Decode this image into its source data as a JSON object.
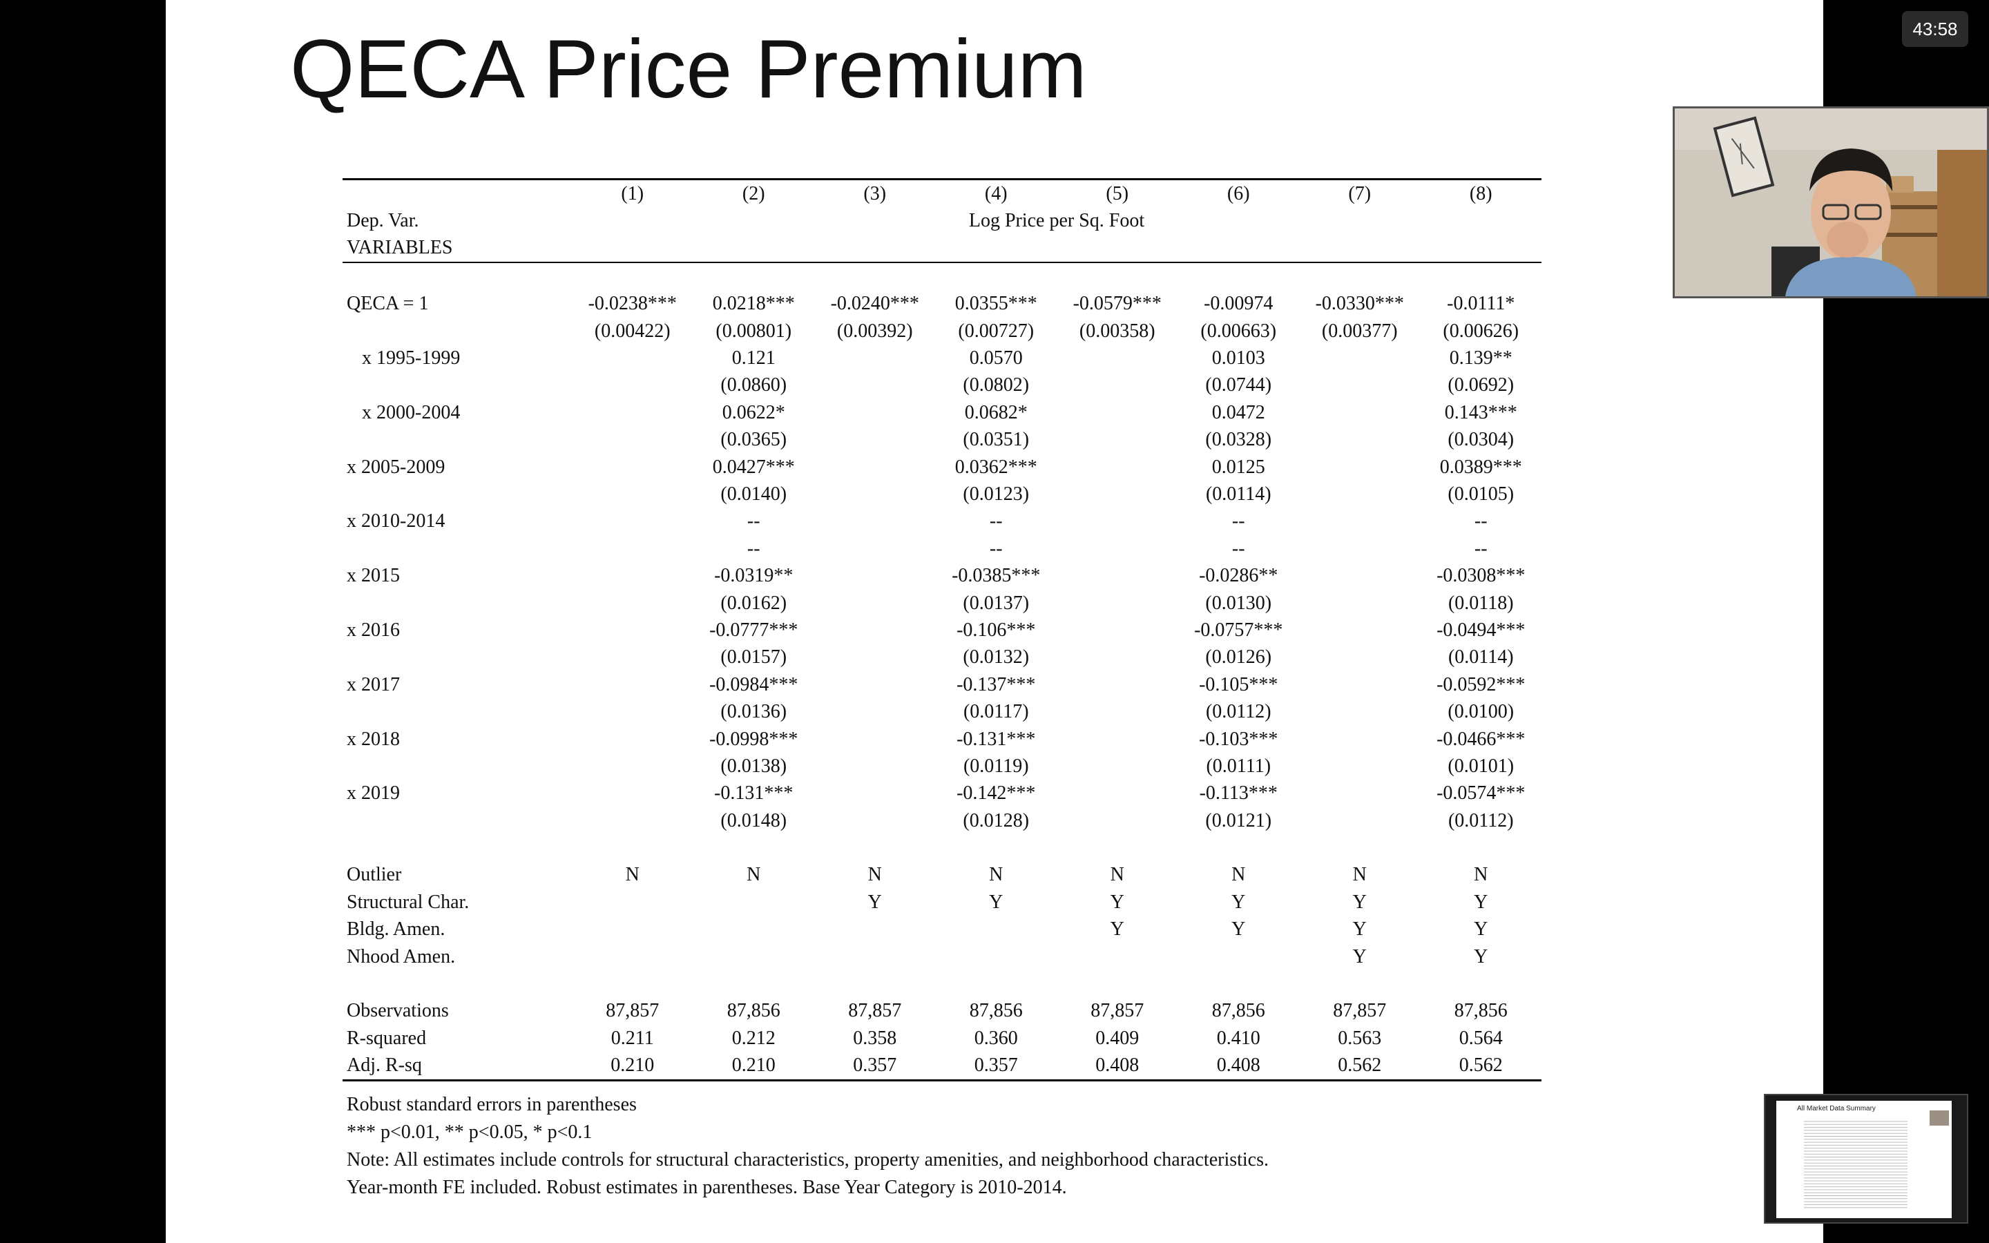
{
  "slide": {
    "title": "QECA Price Premium"
  },
  "timer": {
    "text": "43:58"
  },
  "table": {
    "col_numbers": [
      "(1)",
      "(2)",
      "(3)",
      "(4)",
      "(5)",
      "(6)",
      "(7)",
      "(8)"
    ],
    "dep_var_label": "Dep. Var.",
    "dep_var_value": "Log Price per Sq. Foot",
    "variables_label": "VARIABLES",
    "rows": [
      {
        "label": "QECA = 1",
        "indent": false,
        "values": [
          "-0.0238***",
          "0.0218***",
          "-0.0240***",
          "0.0355***",
          "-0.0579***",
          "-0.00974",
          "-0.0330***",
          "-0.0111*"
        ]
      },
      {
        "label": "",
        "indent": false,
        "values": [
          "(0.00422)",
          "(0.00801)",
          "(0.00392)",
          "(0.00727)",
          "(0.00358)",
          "(0.00663)",
          "(0.00377)",
          "(0.00626)"
        ]
      },
      {
        "label": "x 1995-1999",
        "indent": true,
        "values": [
          "",
          "0.121",
          "",
          "0.0570",
          "",
          "0.0103",
          "",
          "0.139**"
        ]
      },
      {
        "label": "",
        "indent": false,
        "values": [
          "",
          "(0.0860)",
          "",
          "(0.0802)",
          "",
          "(0.0744)",
          "",
          "(0.0692)"
        ]
      },
      {
        "label": "x 2000-2004",
        "indent": true,
        "values": [
          "",
          "0.0622*",
          "",
          "0.0682*",
          "",
          "0.0472",
          "",
          "0.143***"
        ]
      },
      {
        "label": "",
        "indent": false,
        "values": [
          "",
          "(0.0365)",
          "",
          "(0.0351)",
          "",
          "(0.0328)",
          "",
          "(0.0304)"
        ]
      },
      {
        "label": "x 2005-2009",
        "indent": false,
        "values": [
          "",
          "0.0427***",
          "",
          "0.0362***",
          "",
          "0.0125",
          "",
          "0.0389***"
        ]
      },
      {
        "label": "",
        "indent": false,
        "values": [
          "",
          "(0.0140)",
          "",
          "(0.0123)",
          "",
          "(0.0114)",
          "",
          "(0.0105)"
        ]
      },
      {
        "label": "x 2010-2014",
        "indent": false,
        "values": [
          "",
          "--",
          "",
          "--",
          "",
          "--",
          "",
          "--"
        ]
      },
      {
        "label": "",
        "indent": false,
        "values": [
          "",
          "--",
          "",
          "--",
          "",
          "--",
          "",
          "--"
        ]
      },
      {
        "label": "x 2015",
        "indent": false,
        "values": [
          "",
          "-0.0319**",
          "",
          "-0.0385***",
          "",
          "-0.0286**",
          "",
          "-0.0308***"
        ]
      },
      {
        "label": "",
        "indent": false,
        "values": [
          "",
          "(0.0162)",
          "",
          "(0.0137)",
          "",
          "(0.0130)",
          "",
          "(0.0118)"
        ]
      },
      {
        "label": "x 2016",
        "indent": false,
        "values": [
          "",
          "-0.0777***",
          "",
          "-0.106***",
          "",
          "-0.0757***",
          "",
          "-0.0494***"
        ]
      },
      {
        "label": "",
        "indent": false,
        "values": [
          "",
          "(0.0157)",
          "",
          "(0.0132)",
          "",
          "(0.0126)",
          "",
          "(0.0114)"
        ]
      },
      {
        "label": "x 2017",
        "indent": false,
        "values": [
          "",
          "-0.0984***",
          "",
          "-0.137***",
          "",
          "-0.105***",
          "",
          "-0.0592***"
        ]
      },
      {
        "label": "",
        "indent": false,
        "values": [
          "",
          "(0.0136)",
          "",
          "(0.0117)",
          "",
          "(0.0112)",
          "",
          "(0.0100)"
        ]
      },
      {
        "label": "x 2018",
        "indent": false,
        "values": [
          "",
          "-0.0998***",
          "",
          "-0.131***",
          "",
          "-0.103***",
          "",
          "-0.0466***"
        ]
      },
      {
        "label": "",
        "indent": false,
        "values": [
          "",
          "(0.0138)",
          "",
          "(0.0119)",
          "",
          "(0.0111)",
          "",
          "(0.0101)"
        ]
      },
      {
        "label": "x 2019",
        "indent": false,
        "values": [
          "",
          "-0.131***",
          "",
          "-0.142***",
          "",
          "-0.113***",
          "",
          "-0.0574***"
        ]
      },
      {
        "label": "",
        "indent": false,
        "values": [
          "",
          "(0.0148)",
          "",
          "(0.0128)",
          "",
          "(0.0121)",
          "",
          "(0.0112)"
        ]
      }
    ],
    "controls": [
      {
        "label": "Outlier",
        "values": [
          "N",
          "N",
          "N",
          "N",
          "N",
          "N",
          "N",
          "N"
        ]
      },
      {
        "label": "Structural Char.",
        "values": [
          "",
          "",
          "Y",
          "Y",
          "Y",
          "Y",
          "Y",
          "Y"
        ]
      },
      {
        "label": "Bldg. Amen.",
        "values": [
          "",
          "",
          "",
          "",
          "Y",
          "Y",
          "Y",
          "Y"
        ]
      },
      {
        "label": "Nhood Amen.",
        "values": [
          "",
          "",
          "",
          "",
          "",
          "",
          "Y",
          "Y"
        ]
      }
    ],
    "stats": [
      {
        "label": "Observations",
        "values": [
          "87,857",
          "87,856",
          "87,857",
          "87,856",
          "87,857",
          "87,856",
          "87,857",
          "87,856"
        ]
      },
      {
        "label": "R-squared",
        "values": [
          "0.211",
          "0.212",
          "0.358",
          "0.360",
          "0.409",
          "0.410",
          "0.563",
          "0.564"
        ]
      },
      {
        "label": "Adj. R-sq",
        "values": [
          "0.210",
          "0.210",
          "0.357",
          "0.357",
          "0.408",
          "0.408",
          "0.562",
          "0.562"
        ]
      }
    ]
  },
  "notes": [
    "Robust standard errors in parentheses",
    "*** p<0.01, ** p<0.05, * p<0.1",
    "Note: All estimates include controls for structural characteristics, property amenities, and neighborhood characteristics.",
    "Year-month FE included. Robust estimates in parentheses. Base Year Category is 2010-2014."
  ],
  "thumbnail": {
    "title": "All Market Data Summary"
  }
}
